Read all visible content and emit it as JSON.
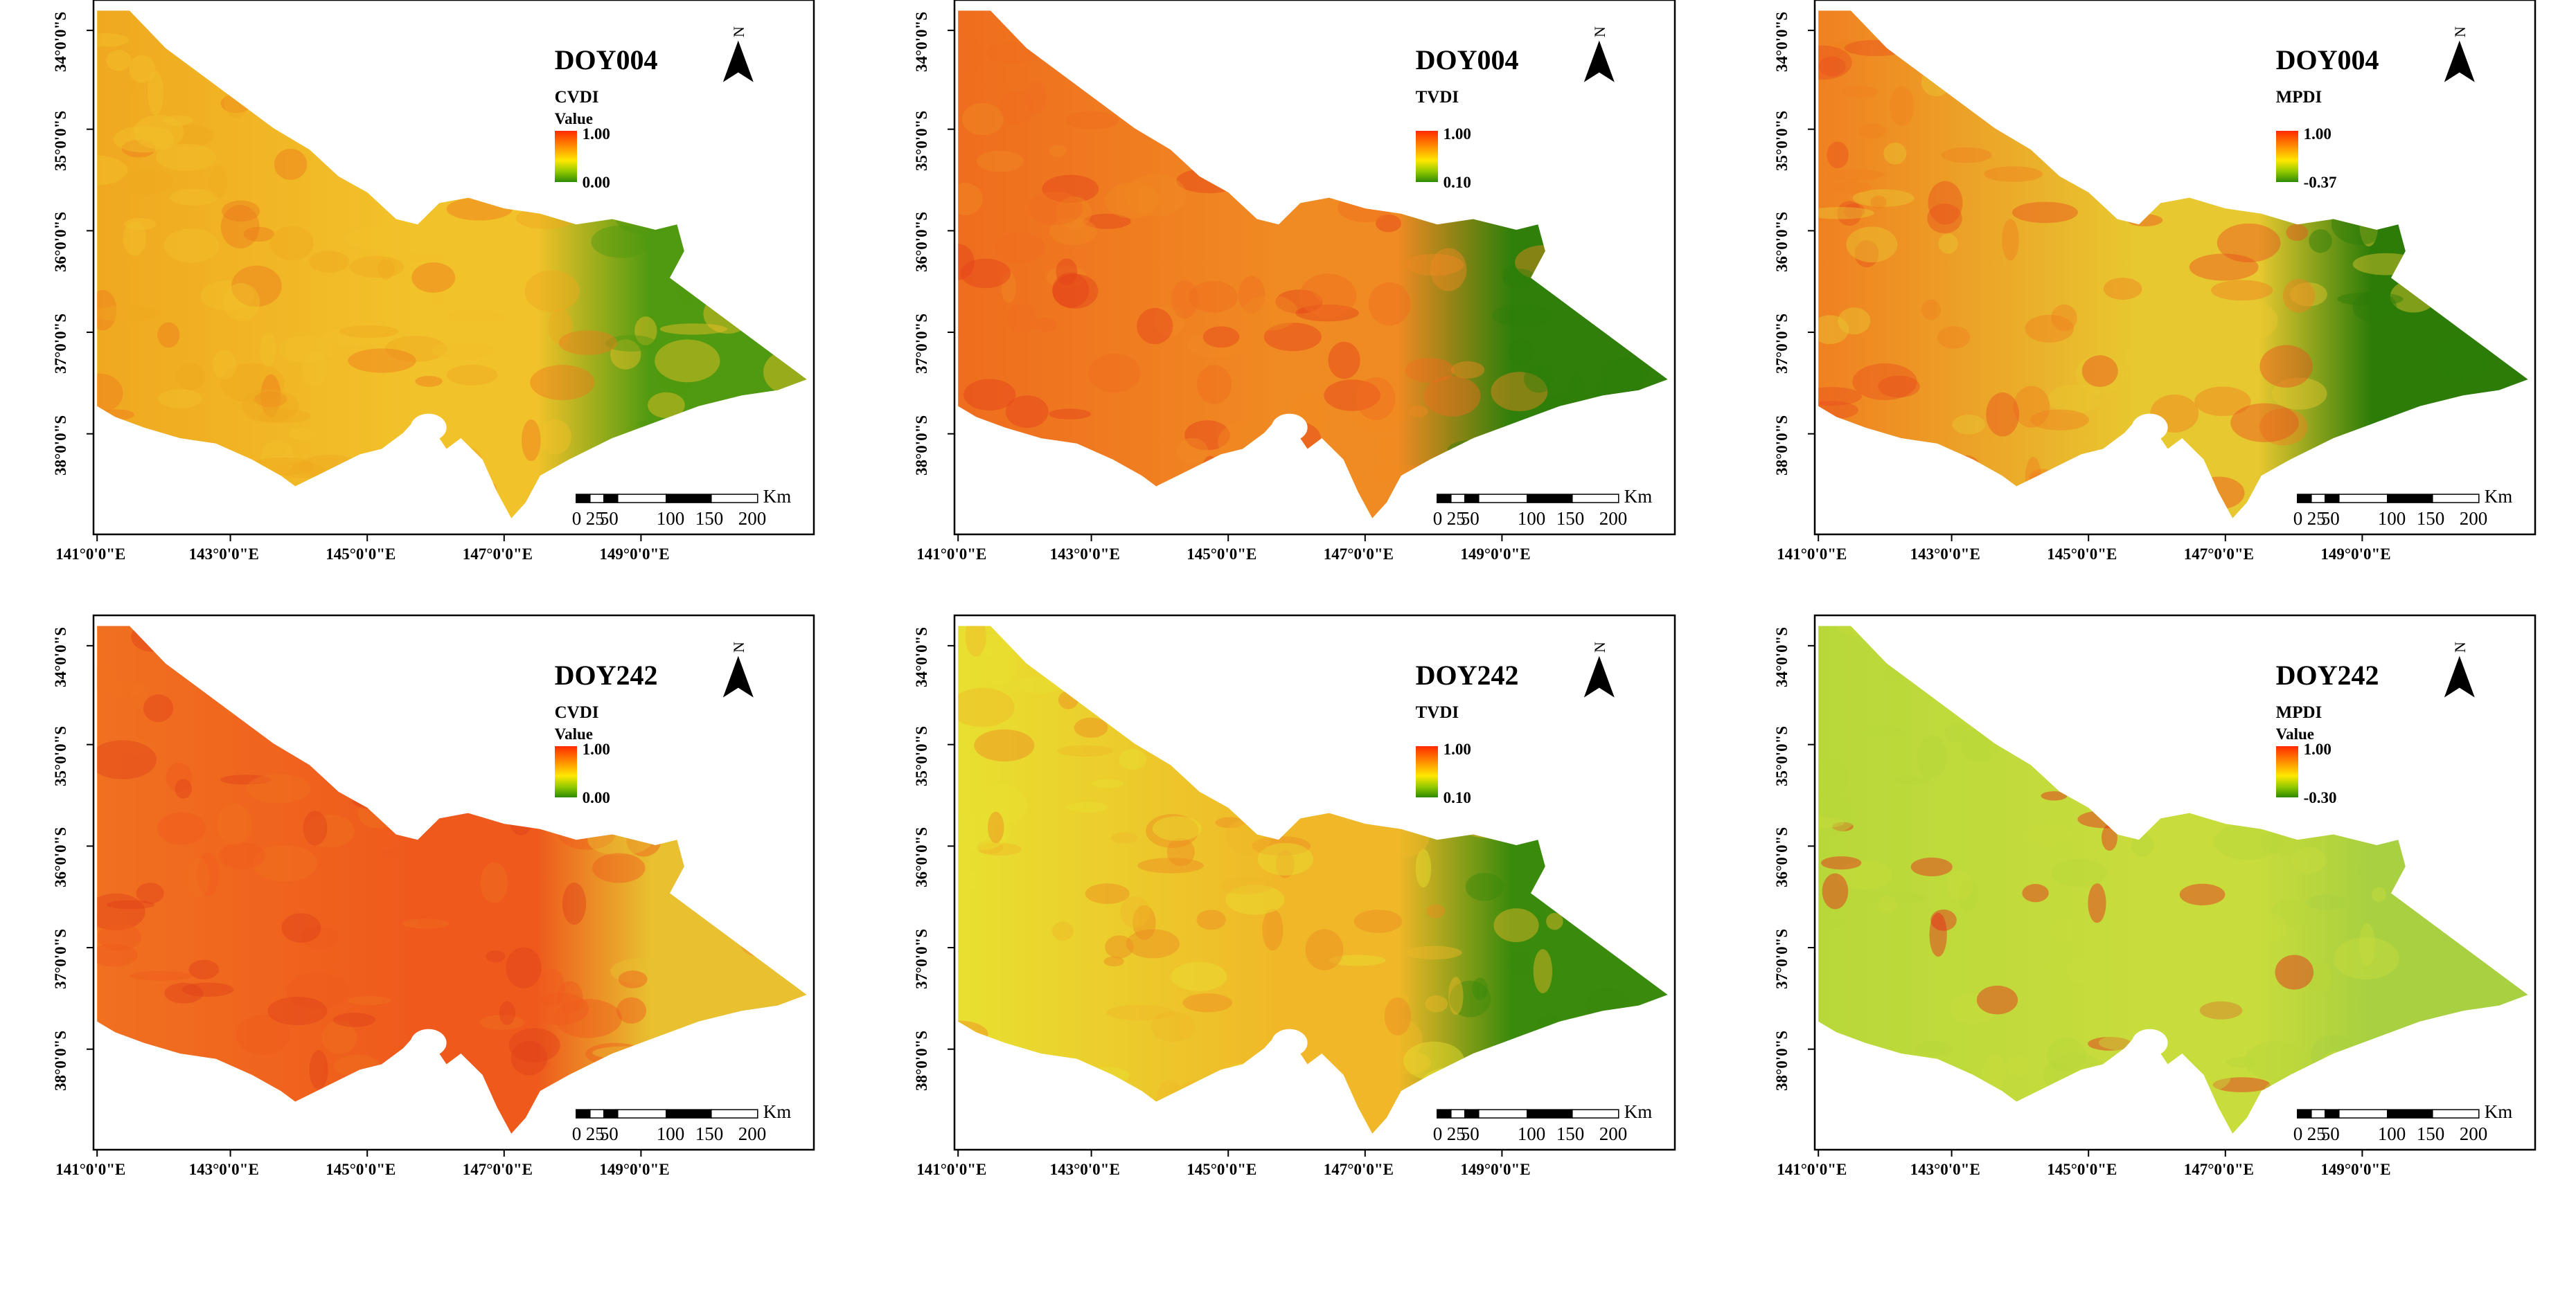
{
  "figure": {
    "description_hidden": false,
    "lat_ticks": [
      "34°0'0\"S",
      "35°0'0\"S",
      "36°0'0\"S",
      "37°0'0\"S",
      "38°0'0\"S"
    ],
    "lon_ticks": [
      "141°0'0\"E",
      "143°0'0\"E",
      "145°0'0\"E",
      "147°0'0\"E",
      "149°0'0\"E"
    ],
    "scale_bar": {
      "ticks": [
        "0",
        "25",
        "50",
        "100",
        "150",
        "200"
      ],
      "units": "Km"
    },
    "north_label": "N",
    "colors": {
      "high": "#ff2a00",
      "orange": "#ff8c00",
      "mid": "#ffe800",
      "lightgreen": "#8fc800",
      "low": "#2d8a00",
      "frame": "#000000"
    }
  },
  "panels": [
    {
      "title": "DOY004",
      "index_name": "CVDI",
      "value_label": "Value",
      "legend_high": "1.00",
      "legend_low": "0.00",
      "fill_west": "#f0a820",
      "fill_mid": "#f2c22a",
      "fill_east": "#4f9a10",
      "hot": "#ee7a1c"
    },
    {
      "title": "DOY004",
      "index_name": "TVDI",
      "value_label": "",
      "legend_high": "1.00",
      "legend_low": "0.10",
      "fill_west": "#ef6d1e",
      "fill_mid": "#f08a22",
      "fill_east": "#2f7f0a",
      "hot": "#e5401a"
    },
    {
      "title": "DOY004",
      "index_name": "MPDI",
      "value_label": "",
      "legend_high": "1.00",
      "legend_low": "-0.37",
      "fill_west": "#f08020",
      "fill_mid": "#e8c830",
      "fill_east": "#2d7c08",
      "hot": "#e8501c"
    },
    {
      "title": "DOY242",
      "index_name": "CVDI",
      "value_label": "Value",
      "legend_high": "1.00",
      "legend_low": "0.00",
      "fill_west": "#f07020",
      "fill_mid": "#ef5a1c",
      "fill_east": "#e8c030",
      "hot": "#e0401a"
    },
    {
      "title": "DOY242",
      "index_name": "TVDI",
      "value_label": "",
      "legend_high": "1.00",
      "legend_low": "0.10",
      "fill_west": "#e8e030",
      "fill_mid": "#f0b828",
      "fill_east": "#3a8a0c",
      "hot": "#ee8a22"
    },
    {
      "title": "DOY242",
      "index_name": "MPDI",
      "value_label": "Value",
      "legend_high": "1.00",
      "legend_low": "-0.30",
      "fill_west": "#b8d83a",
      "fill_mid": "#c8dc3c",
      "fill_east": "#a8d040",
      "hot": "#e8241a"
    }
  ]
}
